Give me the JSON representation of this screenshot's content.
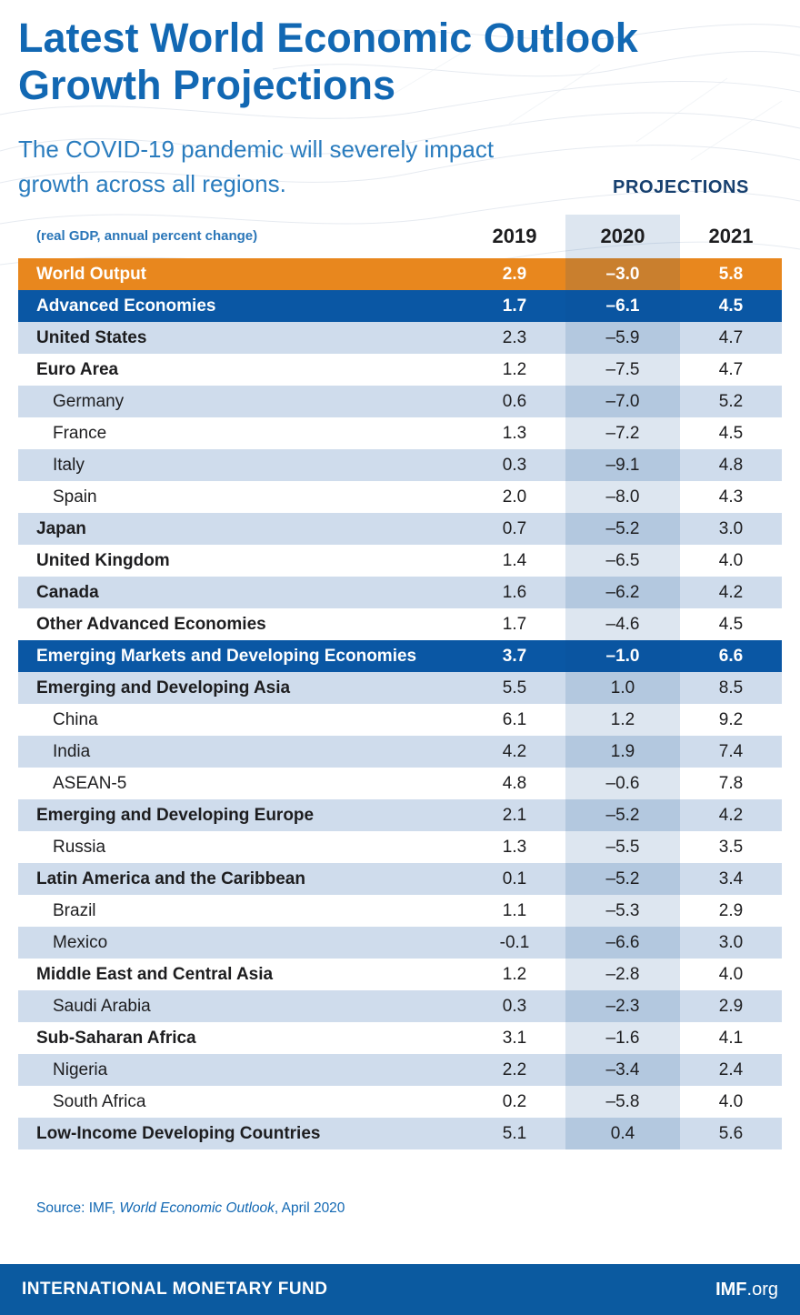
{
  "header": {
    "title": "Latest World Economic Outlook Growth Projections",
    "subtitle": "The COVID-19 pandemic will severely impact growth across all regions.",
    "projections_label": "PROJECTIONS",
    "unit_note": "(real GDP, annual percent change)",
    "columns": [
      "2019",
      "2020",
      "2021"
    ]
  },
  "chart_data": {
    "type": "table",
    "title": "Latest World Economic Outlook Growth Projections",
    "columns": [
      "2019",
      "2020",
      "2021"
    ],
    "rows": [
      {
        "label": "World Output",
        "style": "world",
        "values": [
          "2.9",
          "–3.0",
          "5.8"
        ]
      },
      {
        "label": "Advanced Economies",
        "style": "section",
        "values": [
          "1.7",
          "–6.1",
          "4.5"
        ]
      },
      {
        "label": "United States",
        "style": "group",
        "values": [
          "2.3",
          "–5.9",
          "4.7"
        ]
      },
      {
        "label": "Euro Area",
        "style": "group",
        "values": [
          "1.2",
          "–7.5",
          "4.7"
        ]
      },
      {
        "label": "Germany",
        "style": "country",
        "values": [
          "0.6",
          "–7.0",
          "5.2"
        ]
      },
      {
        "label": "France",
        "style": "country",
        "values": [
          "1.3",
          "–7.2",
          "4.5"
        ]
      },
      {
        "label": "Italy",
        "style": "country",
        "values": [
          "0.3",
          "–9.1",
          "4.8"
        ]
      },
      {
        "label": "Spain",
        "style": "country",
        "values": [
          "2.0",
          "–8.0",
          "4.3"
        ]
      },
      {
        "label": "Japan",
        "style": "group",
        "values": [
          "0.7",
          "–5.2",
          "3.0"
        ]
      },
      {
        "label": "United Kingdom",
        "style": "group",
        "values": [
          "1.4",
          "–6.5",
          "4.0"
        ]
      },
      {
        "label": "Canada",
        "style": "group",
        "values": [
          "1.6",
          "–6.2",
          "4.2"
        ]
      },
      {
        "label": "Other Advanced Economies",
        "style": "group",
        "values": [
          "1.7",
          "–4.6",
          "4.5"
        ]
      },
      {
        "label": "Emerging Markets and Developing Economies",
        "style": "section",
        "values": [
          "3.7",
          "–1.0",
          "6.6"
        ]
      },
      {
        "label": "Emerging and Developing Asia",
        "style": "group",
        "values": [
          "5.5",
          "1.0",
          "8.5"
        ]
      },
      {
        "label": "China",
        "style": "country",
        "values": [
          "6.1",
          "1.2",
          "9.2"
        ]
      },
      {
        "label": "India",
        "style": "country",
        "values": [
          "4.2",
          "1.9",
          "7.4"
        ]
      },
      {
        "label": "ASEAN-5",
        "style": "country",
        "values": [
          "4.8",
          "–0.6",
          "7.8"
        ]
      },
      {
        "label": "Emerging and Developing Europe",
        "style": "group",
        "values": [
          "2.1",
          "–5.2",
          "4.2"
        ]
      },
      {
        "label": "Russia",
        "style": "country",
        "values": [
          "1.3",
          "–5.5",
          "3.5"
        ]
      },
      {
        "label": "Latin America and the Caribbean",
        "style": "group",
        "values": [
          "0.1",
          "–5.2",
          "3.4"
        ]
      },
      {
        "label": "Brazil",
        "style": "country",
        "values": [
          "1.1",
          "–5.3",
          "2.9"
        ]
      },
      {
        "label": "Mexico",
        "style": "country",
        "values": [
          "-0.1",
          "–6.6",
          "3.0"
        ]
      },
      {
        "label": "Middle East and Central Asia",
        "style": "group",
        "values": [
          "1.2",
          "–2.8",
          "4.0"
        ]
      },
      {
        "label": "Saudi Arabia",
        "style": "country",
        "values": [
          "0.3",
          "–2.3",
          "2.9"
        ]
      },
      {
        "label": "Sub-Saharan Africa",
        "style": "group",
        "values": [
          "3.1",
          "–1.6",
          "4.1"
        ]
      },
      {
        "label": "Nigeria",
        "style": "country",
        "values": [
          "2.2",
          "–3.4",
          "2.4"
        ]
      },
      {
        "label": "South Africa",
        "style": "country",
        "values": [
          "0.2",
          "–5.8",
          "4.0"
        ]
      },
      {
        "label": "Low-Income Developing Countries",
        "style": "group",
        "values": [
          "5.1",
          "0.4",
          "5.6"
        ]
      }
    ]
  },
  "source": {
    "prefix": "Source: IMF, ",
    "italic": "World Economic Outlook",
    "suffix": ", April 2020"
  },
  "footer": {
    "left": "INTERNATIONAL MONETARY FUND",
    "imf": "IMF",
    "org": ".org"
  },
  "colors": {
    "title_blue": "#1268b3",
    "subtitle_blue": "#2a7cbe",
    "projections_navy": "#17406f",
    "world_orange": "#e8871e",
    "section_navy": "#0a57a4",
    "light_row": "#cfdcec",
    "footer_bar": "#0b5aa0"
  }
}
